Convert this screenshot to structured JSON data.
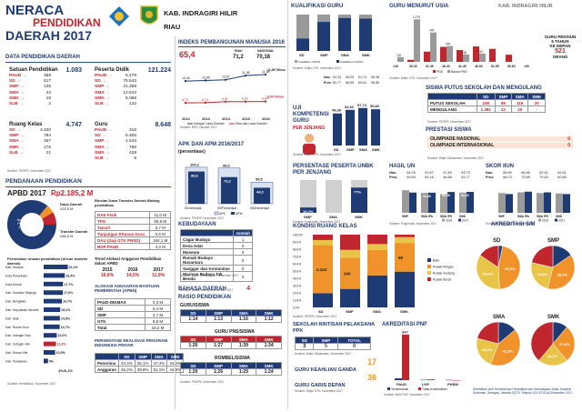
{
  "header": {
    "title_line1": "NERACA",
    "title_line2": "PENDIDIKAN",
    "title_line3": "DAERAH 2017",
    "region_line1": "KAB. INDRAGIRI HILIR",
    "region_line2": "RIAU",
    "region_tag": "KAB. INDRAGIRI HILIR"
  },
  "data_pendidikan": {
    "title": "DATA PENDIDIKAN DAERAH",
    "satuan_title": "Satuan Pendidikan",
    "satuan_total": "1.083",
    "satuan_rows": [
      {
        "label": "PAUD",
        "value": "368"
      },
      {
        "label": "SD",
        "value": "517"
      },
      {
        "label": "SMP",
        "value": "135"
      },
      {
        "label": "SMA",
        "value": "43"
      },
      {
        "label": "SMK",
        "value": "18"
      },
      {
        "label": "SLB",
        "value": "2"
      }
    ],
    "peserta_title": "Peserta Didik",
    "peserta_total": "121.224",
    "peserta_rows": [
      {
        "label": "PAUD",
        "value": "6.479"
      },
      {
        "label": "SD",
        "value": "75.543"
      },
      {
        "label": "SMP",
        "value": "21.359"
      },
      {
        "label": "SMA",
        "value": "12.643"
      },
      {
        "label": "SMK",
        "value": "5.068"
      },
      {
        "label": "SLB",
        "value": "132"
      }
    ],
    "ruang_title": "Ruang Kelas",
    "ruang_total": "4.747",
    "ruang_rows": [
      {
        "label": "SD",
        "value": "3.400"
      },
      {
        "label": "SMP",
        "value": "794"
      },
      {
        "label": "SMA",
        "value": "357"
      },
      {
        "label": "SMK",
        "value": "175"
      },
      {
        "label": "SLB",
        "value": "21"
      }
    ],
    "guru_title": "Guru",
    "guru_total": "8.648",
    "guru_rows": [
      {
        "label": "PAUD",
        "value": "318"
      },
      {
        "label": "SD",
        "value": "5.465"
      },
      {
        "label": "SMP",
        "value": "1.643"
      },
      {
        "label": "SMA",
        "value": "786"
      },
      {
        "label": "SMK",
        "value": "428"
      },
      {
        "label": "SLB",
        "value": "8"
      }
    ],
    "source": "Sumber: PDSPK, November 2017"
  },
  "pendanaan": {
    "title": "PENDANAAN PENDIDIKAN",
    "apbd_label": "APBD 2017",
    "apbd_value": "Rp2.185,2 M",
    "donut_labels": {
      "non_urusan": "Non Urusan Pendidikan",
      "non_urusan_value": "1.873,3 M",
      "dana_daerah": "Dana Daerah",
      "dana_daerah_value": "225,5 M",
      "transfer": "Transfer Daerah",
      "transfer_value": "286,5 M"
    },
    "rincian_title": "Rincian Dana Transfer Daerah Bidang pendidikan",
    "rincian_rows": [
      {
        "label": "DAK Fisik",
        "value": "11,0 M"
      },
      {
        "label": "TPG",
        "value": "59,8 M"
      },
      {
        "label": "Tamsil",
        "value": "3,7 M"
      },
      {
        "label": "Tunjangan Khusus Guru",
        "value": "0,6 M"
      },
      {
        "label": "DAU (Gaji GTK PNSD)",
        "value": "184,1 M"
      },
      {
        "label": "BOP PAUD",
        "value": "4,3 M"
      }
    ],
    "persentase_title": "Persentase urusan pendidikan (di luar transfer daerah)",
    "persentase_rows": [
      {
        "label": "Kab. Kampar",
        "value": "22,1%"
      },
      {
        "label": "Kota Pekanbaru",
        "value": "19,4%"
      },
      {
        "label": "Kota Dumai",
        "value": "17,7%"
      },
      {
        "label": "Kab. Kuantan Singingi",
        "value": "17,6%"
      },
      {
        "label": "Kab. Bengkalis",
        "value": "16,7%"
      },
      {
        "label": "Kab. Kepulauan Meranti",
        "value": "15,2%"
      },
      {
        "label": "Kab. Siak",
        "value": "14,9%"
      },
      {
        "label": "Kab. Rokan Hulu",
        "value": "14,7%"
      },
      {
        "label": "Kab. Indragiri Hulu",
        "value": "12,0%"
      },
      {
        "label": "Kab. Indragiri Hilir",
        "value": "11,3%"
      },
      {
        "label": "Kab. Rokan Hilir",
        "value": "10,5%"
      },
      {
        "label": "Kab. Pelalawan",
        "value": "4%"
      }
    ],
    "persentase_footer": "4%/6,1%",
    "trend_title": "Trend Alokasi Anggaran Pendidikan dalam APBD",
    "trend_years": [
      "2016",
      "2017"
    ],
    "trend_values": [
      "16,6%",
      "14,5%",
      "11,9%"
    ],
    "trend_year_first": "2015",
    "apbn_title": "ALOKASI ANGGARAN BANTUAN PEMERINTAH (APBN)",
    "apbn_rows": [
      {
        "label": "PAUD-DIKMAS",
        "value": "0,3 M"
      },
      {
        "label": "SD",
        "value": "0,4 M"
      },
      {
        "label": "SMP",
        "value": "3,7 M"
      },
      {
        "label": "GTK",
        "value": "9,5 M"
      },
      {
        "label": "Total",
        "value": "18,2 M"
      }
    ],
    "pip_title": "PERSENTASE REALISASI PROGRAM INDONESIA PINTAR",
    "pip_headers": [
      "SD",
      "SMP",
      "SMA",
      "SMK"
    ],
    "pip_rows": [
      {
        "label": "Penerima",
        "values": [
          "43,4%",
          "35,1%",
          "47,4%",
          "44,2%"
        ]
      },
      {
        "label": "Anggaran",
        "values": [
          "46,2%",
          "39,8%",
          "51,1%",
          "44,9%"
        ]
      }
    ],
    "source": "Sumber: Kemdikbud, November 2017"
  },
  "ipm": {
    "title": "INDEKS PEMBANGUNAN MANUSIA 2016",
    "value": "65,4",
    "riau_label": "RIAU",
    "riau_value": "71,2",
    "nasional_label": "NASIONAL",
    "nasional_value": "70,18",
    "years": [
      "2012",
      "2013",
      "2014",
      "2015",
      "2016"
    ],
    "hls": [
      "10,45",
      "10,55",
      "10,67",
      "11,38",
      "11,58"
    ],
    "rls": [
      "6,70",
      "6,74",
      "6,91",
      "6,92",
      "6,94"
    ],
    "rls_label": "6,94 Tahun",
    "hls_label": "11,58 Tahun",
    "legend": [
      "Harapan Lama Sekolah",
      "Rata-rata Lama Sekolah"
    ],
    "source": "Sumber: BPS, Oktober 2017"
  },
  "apk": {
    "title": "APK DAN APM 2016/2017",
    "subtitle": "(persentase)",
    "categories": [
      "SD/sederajat",
      "SMP/sederajat",
      "SMA/sederajat"
    ],
    "apk": [
      100.2,
      98.0,
      59.5
    ],
    "apm": [
      88.6,
      73.2,
      44.0
    ],
    "apk_labels": [
      "100,2",
      "98,0",
      "59,5"
    ],
    "apm_labels": [
      "88,6",
      "73,2",
      "44,0"
    ],
    "legend": [
      "APK",
      "APM"
    ],
    "source": "Sumber: PDSPK, November 2017"
  },
  "kebudayaan": {
    "title": "KEBUDAYAAN",
    "header": "Jumlah",
    "rows": [
      {
        "label": "Cagar Budaya",
        "value": "1"
      },
      {
        "label": "Desa Adat",
        "value": "0"
      },
      {
        "label": "Museum",
        "value": "0"
      },
      {
        "label": "Rumah Budaya Nusantara",
        "value": "0"
      },
      {
        "label": "Sanggar dan Komunitas",
        "value": "0"
      },
      {
        "label": "Warisan Budaya Tak Benda",
        "value": "0"
      }
    ],
    "source": "Sumber: Ditjen Kebudayaan, November 2017"
  },
  "bahasa": {
    "title": "BAHASA DAERAH",
    "value": "4",
    "source": "Sumber: Badan Bahasa, November 2017"
  },
  "rasio": {
    "title": "RASIO PENDIDIKAN",
    "guru_siswa_title": "GURU/SISWA",
    "headers": [
      "SD",
      "SMP",
      "SMA",
      "SMK"
    ],
    "guru_siswa": [
      "1:14",
      "1:13",
      "1:16",
      "1:12"
    ],
    "guru_pns_title": "GURU PNS/SISWA",
    "guru_pns": [
      "1:26",
      "1:27",
      "1:39",
      "1:34"
    ],
    "rombel_title": "ROMBEL/SISWA",
    "rombel": [
      "1:20",
      "1:26",
      "1:29",
      "1:24"
    ],
    "source": "Sumber: PDSPK, November 2017"
  },
  "kualifikasi": {
    "title": "KUALIFIKASI GURU",
    "categories": [
      "SD",
      "SMP",
      "SMA",
      "SMK"
    ],
    "top": [
      34.3,
      79.9,
      90.7,
      88.7
    ],
    "legend": [
      "Kualifikasi <D4/S1",
      "Kualifikasi ≥ D4/S1"
    ],
    "source": "Sumber: Ditjen GTK, November 2017"
  },
  "uji": {
    "title": "UJI KOMPETENSI GURU",
    "subtitle": "PER JENJANG",
    "categories": [
      "SD",
      "SMP",
      "SMA",
      "SMK"
    ],
    "values": [
      49.39,
      54.92,
      57.74,
      55.8
    ],
    "value_labels": [
      "49,39",
      "54,92",
      "57,74",
      "55,80"
    ],
    "nas_label": "Nas.",
    "nas": [
      "54,33",
      "59,25",
      "61,74",
      "58,38"
    ],
    "prov_label": "Prov.",
    "prov": [
      "52,77",
      "56,59",
      "60,61",
      "56,56"
    ],
    "source": "Sumber: Ditjen GTK, November 2017"
  },
  "usia": {
    "title": "GURU MENURUT USIA",
    "categories": [
      "<26",
      "26-30",
      "31-35",
      "36-40",
      "41-45",
      "46-50",
      "51-55",
      "56-60",
      ">60"
    ],
    "pns": [
      0,
      52,
      260,
      380,
      300,
      390,
      330,
      180,
      0
    ],
    "non_pns": [
      120,
      1079,
      745,
      400,
      190,
      210,
      0,
      0,
      0
    ],
    "legend": [
      "PNS",
      "Bukan PNS"
    ],
    "note_line1": "GURU PENSIUN",
    "note_line2": "5 TAHUN",
    "note_line3": "KE DEPAN",
    "note_value": "521",
    "note_unit": "ORANG",
    "source": "Sumber: Ditjen GTK, November 2017"
  },
  "putus": {
    "title": "SISWA PUTUS SEKOLAH DAN MENGULANG",
    "headers": [
      "SD",
      "SMP",
      "SMA",
      "SMK"
    ],
    "rows": [
      {
        "label": "PUTUS SEKOLAH",
        "values": [
          "158",
          "86",
          "116",
          "20"
        ]
      },
      {
        "label": "MENGULANG",
        "values": [
          "1.381",
          "12",
          "20",
          "-"
        ]
      }
    ],
    "source": "Sumber: PDSPK, November 2017"
  },
  "prestasi": {
    "title": "PRESTASI SISWA",
    "rows": [
      {
        "label": "OLIMPIADE NASIONAL",
        "value": "0"
      },
      {
        "label": "OLIMPIADE INTERNASIONAL",
        "value": "0"
      }
    ],
    "source": "Sumber: Ditjen Dikdasmen, November 2017"
  },
  "unbk": {
    "title": "PERSENTASE PESERTA UNBK PER JENJANG",
    "categories": [
      "SMP",
      "SMA",
      "SMK"
    ],
    "values": [
      16.2,
      0,
      77.0
    ],
    "labels": [
      "16,2%",
      "",
      "77%"
    ],
    "source": "Sumber: Puspendik, November 2017"
  },
  "hasil_un": {
    "title": "HASIL UN",
    "nas_label": "Nas.",
    "prov_label": "Prov.",
    "nas": [
      "54,25",
      "52,67",
      "47,83",
      "53,73"
    ],
    "prov": [
      "53,69",
      "50,16",
      "46,56",
      "53,77"
    ],
    "categories": [
      "SMP",
      "SMA IPA",
      "SMA IPS",
      "SMK"
    ],
    "y2016": [
      58.0,
      51.0,
      48.0,
      52.0
    ],
    "y2017": [
      52.0,
      51.69,
      53.46,
      53.6
    ],
    "value_labels": [
      "",
      "51,69",
      "53,46",
      "53,60"
    ],
    "legend": [
      "2016",
      "2017"
    ],
    "source": "Sumber: Puspendik, November 2017"
  },
  "skor_iiun": {
    "title": "SKOR IIUN",
    "nas_label": "Nas.",
    "prov_label": "Prov.",
    "nas": [
      "66,69",
      "66,65",
      "62,61",
      "62,61"
    ],
    "prov": [
      "68,73",
      "70,89",
      "70,63",
      "60,66"
    ],
    "categories": [
      "SMP",
      "SMA IPA",
      "SMA IPS",
      "SMK"
    ],
    "y2016": [
      58,
      60,
      58,
      57
    ],
    "y2017": [
      55,
      62,
      60,
      55
    ],
    "legend": [
      "2016",
      "2017"
    ],
    "source": "Sumber: Puspendik, November 2017"
  },
  "kondisi": {
    "title": "KONDISI RUANG KELAS",
    "categories": [
      "SD",
      "SMP",
      "SMA",
      "SMK"
    ],
    "baik": [
      665,
      202,
      157,
      86
    ],
    "rusak_ringan": [
      2244,
      340,
      125,
      69
    ],
    "rusak_sedang": [
      239,
      86,
      29,
      14
    ],
    "rusak_berat": [
      252,
      166,
      46,
      6
    ],
    "labels": [
      "2.244",
      "340",
      "",
      "69"
    ],
    "legend": [
      "Baik",
      "Rusak Ringan",
      "Rusak Sedang",
      "Rusak Berat"
    ],
    "source": "Sumber: PDSPK, November 2017"
  },
  "rintisan": {
    "title": "SEKOLAH RINTISAN PELAKSANA PPK",
    "headers": [
      "SD",
      "SMP",
      "TOTAL"
    ],
    "values": [
      "3",
      "5",
      "8"
    ],
    "source": "Sumber: Ditjen Dikdasmen, November 2017"
  },
  "keahlian": {
    "title": "GURU KEAHLIAN GANDA",
    "value": "17"
  },
  "garis_depan": {
    "title": "GURU GARIS DEPAN",
    "value": "36",
    "source": "Sumber: Ditjen GTK, November 2017"
  },
  "pnf": {
    "title": "AKREDITASI PNF",
    "categories": [
      "PAUD",
      "LKP",
      "PKBM"
    ],
    "terakreditasi": [
      14,
      3,
      2
    ],
    "tidak": [
      347,
      6,
      0
    ],
    "labels": [
      "347",
      "",
      ""
    ],
    "legend": [
      "Terakreditasi",
      "Tidak terakreditasi"
    ],
    "source": "Sumber: BAN-PNF, November 2017"
  },
  "akreditasi": {
    "title": "AKREDITASI S/M",
    "charts": [
      {
        "name": "SD",
        "A": 3.2,
        "B": 45.9,
        "C": 35.3,
        "TT": 15.6
      },
      {
        "name": "SMP",
        "A": 15.5,
        "B": 38.5,
        "C": 24.6,
        "TT": 21.4
      },
      {
        "name": "SMA",
        "A": 13.9,
        "B": 41.9,
        "C": 23.3,
        "TT": 20.9
      },
      {
        "name": "SMK",
        "A": 11.1,
        "B": 27.8,
        "C": 22.2,
        "TT": 38.9
      }
    ],
    "pct_labels": [
      [
        "",
        "45,9%",
        "35,3%",
        ""
      ],
      [
        "",
        "38,5%",
        "24,6%",
        ""
      ],
      [
        "",
        "41,9%",
        "23,3%",
        ""
      ],
      [
        "",
        "27,8%",
        "22,2%",
        ""
      ]
    ],
    "colors": {
      "A": "#1f3b73",
      "B": "#f0932b",
      "C": "#e8c547",
      "TT": "#c0262d"
    },
    "footer": "Diterbitkan oleh Kementerian Pendidikan dan Kebudayaan Jalan Jenderal Sudirman, Senayan, Jakarta 10270, Telepon 021-5711144 Desember 2017"
  },
  "colors": {
    "navy": "#1f3b73",
    "red": "#c0262d",
    "orange": "#f0932b",
    "gray": "#9a9a9a",
    "light_blue": "#5b8fd1"
  }
}
